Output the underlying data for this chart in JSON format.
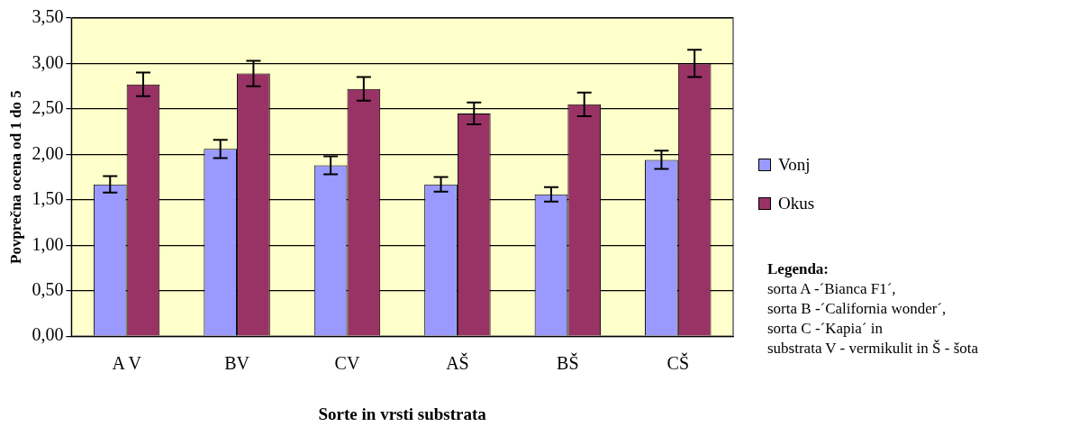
{
  "chart_data": {
    "type": "bar",
    "xlabel": "Sorte in vrsti substrata",
    "ylabel": "Povprečna ocena od 1 do 5",
    "categories": [
      "A V",
      "BV",
      "CV",
      "AŠ",
      "BŠ",
      "CŠ"
    ],
    "series": [
      {
        "name": "Vonj",
        "color": "#9999ff",
        "values": [
          1.67,
          2.06,
          1.88,
          1.67,
          1.56,
          1.94
        ],
        "errors": [
          0.09,
          0.1,
          0.1,
          0.08,
          0.08,
          0.1
        ]
      },
      {
        "name": "Okus",
        "color": "#993366",
        "values": [
          2.77,
          2.89,
          2.72,
          2.45,
          2.55,
          3.0
        ],
        "errors": [
          0.13,
          0.14,
          0.13,
          0.12,
          0.13,
          0.15
        ]
      }
    ],
    "ylim": [
      0,
      3.5
    ],
    "yticks": [
      {
        "value": 0,
        "label": "0,00"
      },
      {
        "value": 0.5,
        "label": "0,50"
      },
      {
        "value": 1,
        "label": "1,00"
      },
      {
        "value": 1.5,
        "label": "1,50"
      },
      {
        "value": 2,
        "label": "2,00"
      },
      {
        "value": 2.5,
        "label": "2,50"
      },
      {
        "value": 3,
        "label": "3,00"
      },
      {
        "value": 3.5,
        "label": "3,50"
      }
    ],
    "grid": "y",
    "legend": "right",
    "annotations": [
      "Legenda:",
      "sorta A -´Bianca F1´,",
      "sorta B -´California wonder´,",
      "sorta C -´Kapia´ in",
      "substrata V - vermikulit in Š - šota"
    ]
  }
}
